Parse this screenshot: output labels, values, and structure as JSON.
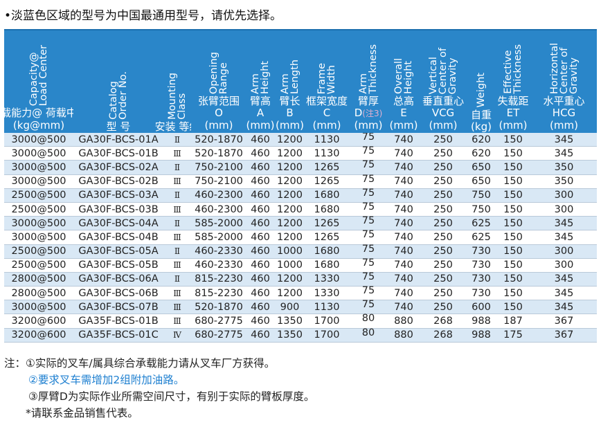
{
  "intro": "•淡蓝色区域的型号为中国最通用型号，请优先选择。",
  "headers": [
    {
      "en": "Capacity@\nLoad Center",
      "zh": "承载能力@\n荷载中心",
      "sym": "",
      "unit": "(kg@mm)"
    },
    {
      "en": "Catalog\nOrder No.",
      "zh": "型 号",
      "sym": "",
      "unit": ""
    },
    {
      "en": "Mounting\nClass",
      "zh": "安装\n等级",
      "sym": "",
      "unit": ""
    },
    {
      "en": "Opening\nRange",
      "zh": "张臂范围",
      "sym": "O",
      "unit": "(mm)"
    },
    {
      "en": "Arm\nHeight",
      "zh": "臂高",
      "sym": "A",
      "unit": "(mm)"
    },
    {
      "en": "Arm\nLength",
      "zh": "臂长",
      "sym": "B",
      "unit": "(mm)"
    },
    {
      "en": "Frame\nWidth",
      "zh": "框架宽度",
      "sym": "C",
      "unit": "(mm)"
    },
    {
      "en": "Arm\nThickness",
      "zh": "臂厚",
      "sym": "D(注3)",
      "unit": "(mm)"
    },
    {
      "en": "Overall\nHeight",
      "zh": "总高",
      "sym": "E",
      "unit": "(mm)"
    },
    {
      "en": "Vertical\nCenter of\nGravity",
      "zh": "垂直重心",
      "sym": "VCG",
      "unit": "(mm)"
    },
    {
      "en": "Weight",
      "zh": "自重",
      "sym": "(kg)",
      "unit": ""
    },
    {
      "en": "Effective\nThickness",
      "zh": "失载距",
      "sym": "ET",
      "unit": "(mm)"
    },
    {
      "en": "Horizontal\nCenter of\nGravity",
      "zh": "水平重心",
      "sym": "HCG",
      "unit": "(mm)"
    }
  ],
  "rows": [
    [
      "3000@500",
      "GA30F-BCS-01A",
      "Ⅱ",
      "520-1870",
      "460",
      "1200",
      "1130",
      "75",
      "740",
      "250",
      "620",
      "150",
      "345"
    ],
    [
      "3000@500",
      "GA30F-BCS-01B",
      "Ⅲ",
      "520-1870",
      "460",
      "1200",
      "1130",
      "75",
      "740",
      "250",
      "620",
      "150",
      "345"
    ],
    [
      "3000@500",
      "GA30F-BCS-02A",
      "Ⅱ",
      "750-2100",
      "460",
      "1200",
      "1265",
      "75",
      "740",
      "250",
      "650",
      "150",
      "350"
    ],
    [
      "3000@500",
      "GA30F-BCS-02B",
      "Ⅲ",
      "750-2100",
      "460",
      "1200",
      "1265",
      "75",
      "740",
      "250",
      "650",
      "150",
      "350"
    ],
    [
      "2500@500",
      "GA30F-BCS-03A",
      "Ⅱ",
      "460-2300",
      "460",
      "1200",
      "1680",
      "75",
      "740",
      "250",
      "750",
      "150",
      "300"
    ],
    [
      "2500@500",
      "GA30F-BCS-03B",
      "Ⅲ",
      "460-2300",
      "460",
      "1200",
      "1680",
      "75",
      "740",
      "250",
      "750",
      "150",
      "300"
    ],
    [
      "3000@500",
      "GA30F-BCS-04A",
      "Ⅱ",
      "585-2000",
      "460",
      "1200",
      "1265",
      "75",
      "740",
      "250",
      "625",
      "150",
      "345"
    ],
    [
      "3000@500",
      "GA30F-BCS-04B",
      "Ⅲ",
      "585-2000",
      "460",
      "1200",
      "1265",
      "75",
      "740",
      "250",
      "625",
      "150",
      "345"
    ],
    [
      "2500@500",
      "GA30F-BCS-05A",
      "Ⅱ",
      "460-2330",
      "460",
      "1000",
      "1680",
      "75",
      "740",
      "250",
      "730",
      "150",
      "300"
    ],
    [
      "2500@500",
      "GA30F-BCS-05B",
      "Ⅲ",
      "460-2330",
      "460",
      "1000",
      "1680",
      "75",
      "740",
      "250",
      "730",
      "150",
      "300"
    ],
    [
      "2800@500",
      "GA30F-BCS-06A",
      "Ⅱ",
      "815-2230",
      "460",
      "1200",
      "1330",
      "75",
      "740",
      "250",
      "730",
      "150",
      "345"
    ],
    [
      "2800@500",
      "GA30F-BCS-06B",
      "Ⅲ",
      "815-2230",
      "460",
      "1200",
      "1330",
      "75",
      "740",
      "250",
      "730",
      "150",
      "345"
    ],
    [
      "3000@500",
      "GA30F-BCS-07B",
      "Ⅲ",
      "520-1870",
      "460",
      "900",
      "1130",
      "75",
      "740",
      "250",
      "600",
      "150",
      "345"
    ],
    [
      "3200@600",
      "GA35F-BCS-01B",
      "Ⅲ",
      "680-2775",
      "460",
      "1350",
      "1700",
      "80",
      "880",
      "268",
      "988",
      "187",
      "367"
    ],
    [
      "3200@600",
      "GA35F-BCS-01C",
      "Ⅳ",
      "680-2775",
      "460",
      "1350",
      "1700",
      "80",
      "880",
      "268",
      "988",
      "175",
      "367"
    ]
  ],
  "notes": {
    "n1": "注：①实际的叉车/属具综合承载能力请从叉车厂方获得。",
    "n2": "②要求叉车需增加2组附加油路。",
    "n3": "③厚臂D为实际作业所需空间尺寸，有别于实际的臂板厚度。",
    "n4": "*请联系金品销售代表。"
  },
  "colors": {
    "header_bg": "#2a86c9",
    "row_highlight": "#d9e8f5",
    "note_blue": "#1d7fd0"
  }
}
